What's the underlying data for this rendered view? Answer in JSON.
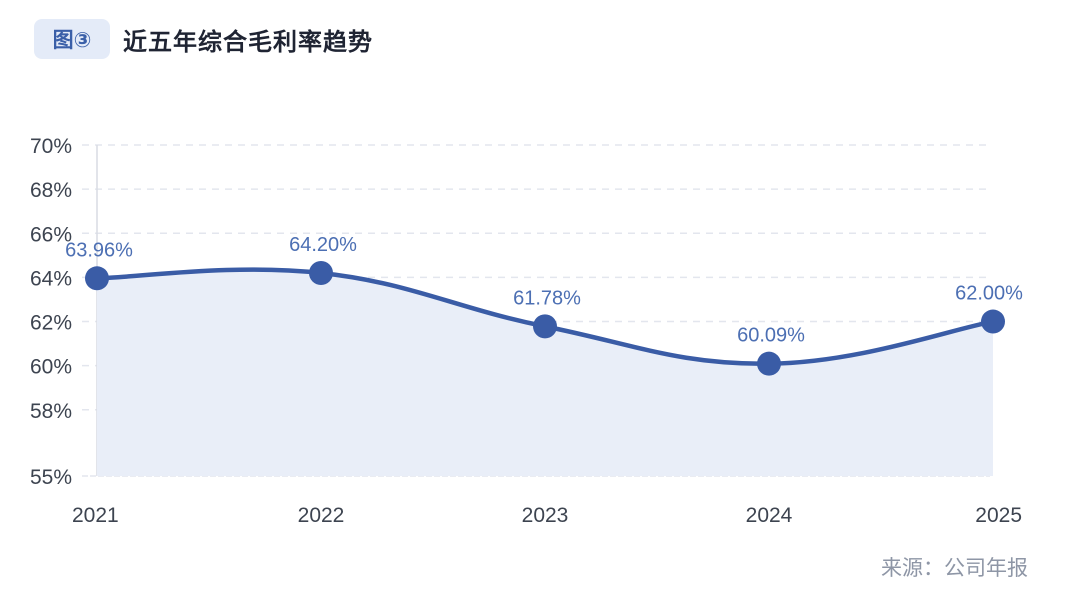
{
  "header": {
    "badge": "图③",
    "title": "近五年综合毛利率趋势"
  },
  "footer": {
    "source": "来源：公司年报"
  },
  "colors": {
    "line": "#3a5ca6",
    "area": "#e9eef8",
    "label": "#4c6fb3",
    "grid": "#e3e6ee",
    "badge_bg": "#e4ebf8"
  },
  "chart_data": {
    "type": "line",
    "title": "近五年综合毛利率趋势",
    "xlabel": "",
    "ylabel": "",
    "categories": [
      "2021",
      "2022",
      "2023",
      "2024",
      "2025"
    ],
    "series": [
      {
        "name": "综合毛利率",
        "values": [
          63.96,
          64.2,
          61.78,
          60.09,
          62.0
        ]
      }
    ],
    "data_labels": [
      "63.96%",
      "64.20%",
      "61.78%",
      "60.09%",
      "62.00%"
    ],
    "y_ticks": [
      "70%",
      "68%",
      "66%",
      "64%",
      "62%",
      "60%",
      "58%",
      "55%"
    ],
    "y_tick_values": [
      70,
      68,
      66,
      64,
      62,
      60,
      58,
      55
    ],
    "ylim": [
      55,
      70
    ],
    "grid": true,
    "legend": "none",
    "area_fill": true,
    "smooth": true
  }
}
